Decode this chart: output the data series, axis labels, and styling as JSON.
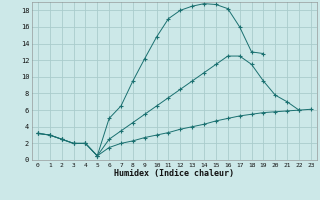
{
  "xlabel": "Humidex (Indice chaleur)",
  "background_color": "#cce8e8",
  "grid_color": "#aacccc",
  "line_color": "#1a7070",
  "xlim": [
    -0.5,
    23.5
  ],
  "ylim": [
    0,
    19
  ],
  "xticks": [
    0,
    1,
    2,
    3,
    4,
    5,
    6,
    7,
    8,
    9,
    10,
    11,
    12,
    13,
    14,
    15,
    16,
    17,
    18,
    19,
    20,
    21,
    22,
    23
  ],
  "yticks": [
    0,
    2,
    4,
    6,
    8,
    10,
    12,
    14,
    16,
    18
  ],
  "series": [
    {
      "x": [
        0,
        1,
        2,
        3,
        4,
        5,
        6,
        7,
        8,
        9,
        10,
        11,
        12,
        13,
        14,
        15,
        16,
        17,
        18,
        19
      ],
      "y": [
        3.2,
        3.0,
        2.5,
        2.0,
        2.0,
        0.5,
        5.0,
        6.5,
        9.5,
        12.2,
        14.8,
        17.0,
        18.0,
        18.5,
        18.8,
        18.7,
        18.2,
        16.0,
        13.0,
        12.8
      ]
    },
    {
      "x": [
        0,
        1,
        2,
        3,
        4,
        5,
        6,
        7,
        8,
        9,
        10,
        11,
        12,
        13,
        14,
        15,
        16,
        17,
        18,
        19,
        20,
        21,
        22
      ],
      "y": [
        3.2,
        3.0,
        2.5,
        2.0,
        2.0,
        0.5,
        2.5,
        3.5,
        4.5,
        5.5,
        6.5,
        7.5,
        8.5,
        9.5,
        10.5,
        11.5,
        12.5,
        12.5,
        11.5,
        9.5,
        7.8,
        7.0,
        6.0
      ]
    },
    {
      "x": [
        0,
        1,
        2,
        3,
        4,
        5,
        6,
        7,
        8,
        9,
        10,
        11,
        12,
        13,
        14,
        15,
        16,
        17,
        18,
        19,
        20,
        21,
        22,
        23
      ],
      "y": [
        3.2,
        3.0,
        2.5,
        2.0,
        2.0,
        0.5,
        1.5,
        2.0,
        2.3,
        2.7,
        3.0,
        3.3,
        3.7,
        4.0,
        4.3,
        4.7,
        5.0,
        5.3,
        5.5,
        5.7,
        5.8,
        5.9,
        6.0,
        6.1
      ]
    }
  ]
}
